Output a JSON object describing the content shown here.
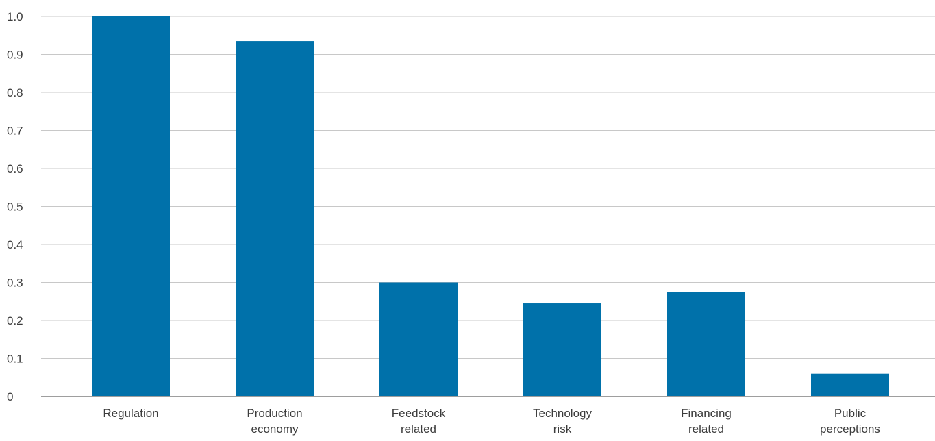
{
  "chart_data": {
    "type": "bar",
    "title": "",
    "xlabel": "",
    "ylabel": "",
    "categories": [
      [
        "Regulation"
      ],
      [
        "Production",
        "economy"
      ],
      [
        "Feedstock",
        "related"
      ],
      [
        "Technology",
        "risk"
      ],
      [
        "Financing",
        "related"
      ],
      [
        "Public",
        "perceptions"
      ]
    ],
    "values": [
      1.0,
      0.935,
      0.3,
      0.245,
      0.275,
      0.06
    ],
    "ylim": [
      0,
      1.0
    ],
    "yticks": [
      "0",
      "0.1",
      "0.2",
      "0.3",
      "0.4",
      "0.5",
      "0.6",
      "0.7",
      "0.8",
      "0.9",
      "1.0"
    ],
    "grid": true,
    "legend": "none",
    "colors": {
      "bar": "#0071aa",
      "grid": "#c8c8c8",
      "axis": "#7f7f7f",
      "text": "#3c3c3c"
    }
  }
}
